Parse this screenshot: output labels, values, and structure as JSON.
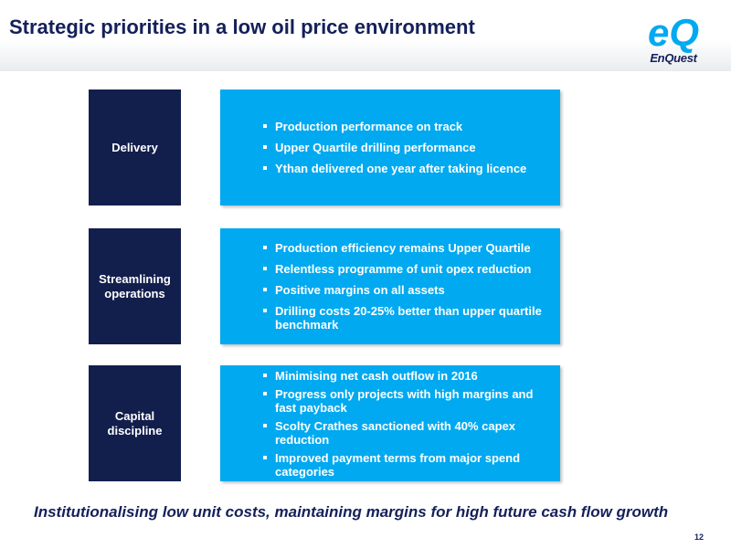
{
  "slide": {
    "title": "Strategic priorities in a low oil price environment",
    "logo": {
      "text": "EnQuest",
      "mark": "eQ"
    },
    "rows": [
      {
        "label": "Delivery",
        "bullets": [
          "Production performance on track",
          "Upper Quartile drilling performance",
          "Ythan delivered one year after taking licence"
        ]
      },
      {
        "label": "Streamlining operations",
        "bullets": [
          "Production efficiency remains Upper Quartile",
          "Relentless programme of unit opex reduction",
          "Positive margins on all assets",
          "Drilling costs 20-25% better than upper quartile benchmark"
        ]
      },
      {
        "label": "Capital discipline",
        "bullets": [
          "Minimising net cash outflow in 2016",
          "Progress only projects with high margins and fast payback",
          "Scolty Crathes sanctioned with 40% capex reduction",
          "Improved payment terms from major spend categories"
        ]
      }
    ],
    "footer": "Institutionalising low unit costs, maintaining margins for high future cash flow growth",
    "page_number": "12"
  },
  "colors": {
    "navy": "#121e4c",
    "bright_blue": "#00a9f0",
    "title_text": "#14205a"
  }
}
